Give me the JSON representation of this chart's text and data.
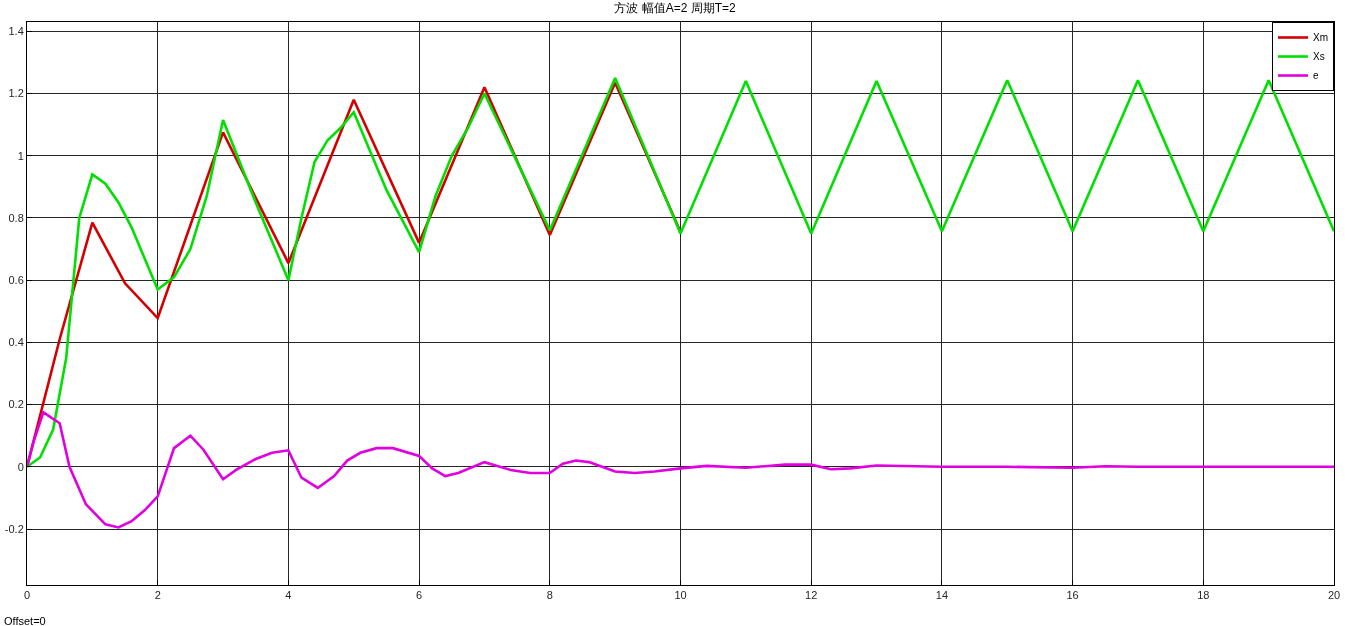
{
  "chart_data": {
    "type": "line",
    "title": "方波 幅值A=2 周期T=2",
    "annotations": [
      "Offset=0"
    ],
    "xlim": [
      0,
      20
    ],
    "ylim": [
      -0.38,
      1.43
    ],
    "xticks": [
      0,
      2,
      4,
      6,
      8,
      10,
      12,
      14,
      16,
      18,
      20
    ],
    "yticks": [
      -0.2,
      0,
      0.2,
      0.4,
      0.6,
      0.8,
      1,
      1.2,
      1.4
    ],
    "grid": true,
    "legend": "top right",
    "marker": "none",
    "line_style": "solid",
    "series": [
      {
        "name": "Xm",
        "color": "#d40000",
        "x": [
          0,
          0.5,
          1,
          1.5,
          2,
          3,
          4,
          5,
          6,
          7,
          8,
          9,
          10
        ],
        "values": [
          0,
          0.41,
          0.785,
          0.59,
          0.478,
          1.075,
          0.655,
          1.18,
          0.72,
          1.22,
          0.745,
          1.235,
          0.755
        ]
      },
      {
        "name": "Xs",
        "color": "#00e000",
        "x": [
          0,
          0.2,
          0.4,
          0.6,
          0.8,
          1,
          1.2,
          1.4,
          1.6,
          1.8,
          2,
          2.25,
          2.5,
          2.75,
          3,
          3.5,
          4,
          4.2,
          4.4,
          4.6,
          4.8,
          5,
          5.5,
          6,
          6.25,
          6.5,
          6.75,
          7,
          8,
          9,
          10,
          11,
          12,
          13,
          14,
          15,
          16,
          17,
          18,
          19,
          20
        ],
        "values": [
          0,
          0.03,
          0.12,
          0.35,
          0.8,
          0.94,
          0.91,
          0.85,
          0.77,
          0.67,
          0.57,
          0.61,
          0.7,
          0.87,
          1.115,
          0.85,
          0.6,
          0.8,
          0.98,
          1.05,
          1.09,
          1.14,
          0.89,
          0.69,
          0.87,
          1.0,
          1.09,
          1.2,
          0.76,
          1.25,
          0.75,
          1.24,
          0.75,
          1.24,
          0.757,
          1.243,
          0.757,
          1.243,
          0.757,
          1.243,
          0.757
        ]
      },
      {
        "name": "e",
        "color": "#e000e0",
        "x": [
          0,
          0.1,
          0.25,
          0.5,
          0.65,
          0.9,
          1.2,
          1.4,
          1.6,
          1.8,
          2,
          2.25,
          2.5,
          2.7,
          3,
          3.2,
          3.5,
          3.75,
          4,
          4.2,
          4.45,
          4.7,
          4.9,
          5.1,
          5.35,
          5.6,
          6,
          6.2,
          6.4,
          6.6,
          7,
          7.4,
          7.7,
          8,
          8.2,
          8.4,
          8.6,
          9,
          9.3,
          9.6,
          10,
          10.4,
          11,
          11.6,
          12,
          12.3,
          12.6,
          13,
          14,
          15,
          16,
          16.5,
          17,
          20
        ],
        "values": [
          0,
          0.08,
          0.175,
          0.14,
          0,
          -0.12,
          -0.185,
          -0.195,
          -0.175,
          -0.14,
          -0.095,
          0.06,
          0.1,
          0.055,
          -0.04,
          -0.01,
          0.025,
          0.045,
          0.053,
          -0.035,
          -0.068,
          -0.03,
          0.02,
          0.045,
          0.06,
          0.06,
          0.035,
          -0.005,
          -0.03,
          -0.02,
          0.015,
          -0.01,
          -0.02,
          -0.02,
          0.01,
          0.02,
          0.015,
          -0.015,
          -0.02,
          -0.015,
          -0.005,
          0.003,
          -0.003,
          0.007,
          0.007,
          -0.008,
          -0.005,
          0.004,
          0,
          0,
          -0.003,
          0.002,
          0,
          0
        ]
      }
    ]
  }
}
